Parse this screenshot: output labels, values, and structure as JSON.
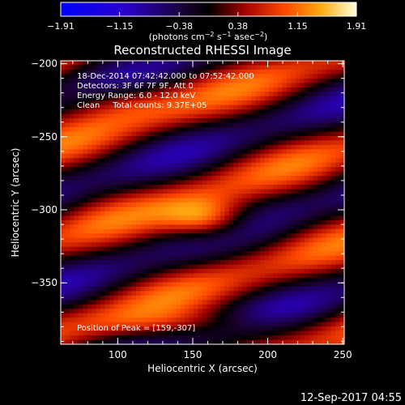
{
  "chart_data": {
    "type": "heatmap",
    "title": "Reconstructed RHESSI Image",
    "xlabel": "Heliocentric X (arcsec)",
    "ylabel": "Heliocentric Y (arcsec)",
    "xlim": [
      62,
      251
    ],
    "ylim": [
      -392,
      -198
    ],
    "x_ticks": [
      100,
      150,
      200,
      250
    ],
    "x_tick_labels": [
      "100",
      "150",
      "200",
      "250"
    ],
    "y_ticks": [
      -200,
      -250,
      -300,
      -350
    ],
    "y_tick_labels": [
      "−200",
      "−250",
      "−300",
      "−350"
    ],
    "colorbar": {
      "min": -1.91,
      "max": 1.91,
      "ticks": [
        -1.91,
        -1.15,
        -0.38,
        0.38,
        1.15,
        1.91
      ],
      "tick_labels": [
        "−1.91",
        "−1.15",
        "−0.38",
        "0.38",
        "1.15",
        "1.91"
      ],
      "unit_label": "(photons cm",
      "unit_exp1": "−2",
      "unit_mid": " s",
      "unit_exp2": "−1",
      "unit_mid2": " asec",
      "unit_exp3": "−2",
      "unit_end": ")",
      "placement": "top"
    },
    "annotations": [
      "18-Dec-2014 07:42:42.000 to 07:52:42.000",
      "Detectors: 3F 6F 7F 9F, Att 0",
      "Energy Range: 6.0 - 12.0 keV",
      "Clean     Total counts: 9.37E+05"
    ],
    "peak_label": "Position of Peak = [159,-307]",
    "peak": [
      159,
      -307
    ],
    "date_stamp": "12-Sep-2017 04:55",
    "grid": false
  }
}
